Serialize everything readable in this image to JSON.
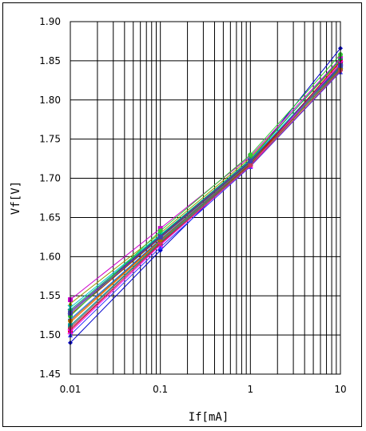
{
  "chart_data": {
    "type": "line",
    "title": "",
    "xlabel": "If[mA]",
    "ylabel": "Vf[V]",
    "x_scale": "log",
    "xlim": [
      0.01,
      10
    ],
    "ylim": [
      1.45,
      1.9
    ],
    "x_ticks": [
      {
        "value": 0.01,
        "label": "0.01"
      },
      {
        "value": 0.1,
        "label": "0.1"
      },
      {
        "value": 1,
        "label": "1"
      },
      {
        "value": 10,
        "label": "10"
      }
    ],
    "y_ticks": [
      {
        "value": 1.45,
        "label": "1.45"
      },
      {
        "value": 1.5,
        "label": "1.50"
      },
      {
        "value": 1.55,
        "label": "1.55"
      },
      {
        "value": 1.6,
        "label": "1.60"
      },
      {
        "value": 1.65,
        "label": "1.65"
      },
      {
        "value": 1.7,
        "label": "1.70"
      },
      {
        "value": 1.75,
        "label": "1.75"
      },
      {
        "value": 1.8,
        "label": "1.80"
      },
      {
        "value": 1.85,
        "label": "1.85"
      },
      {
        "value": 1.9,
        "label": "1.90"
      }
    ],
    "grid": true,
    "legend": "none",
    "x": [
      0.01,
      0.1,
      1,
      10
    ],
    "series": [
      {
        "color": "#0000cc",
        "marker": "diamond",
        "values": [
          1.49,
          1.608,
          1.722,
          1.866
        ]
      },
      {
        "color": "#cc00cc",
        "marker": "square",
        "values": [
          1.545,
          1.636,
          1.728,
          1.853
        ]
      },
      {
        "color": "#999900",
        "marker": "triangle",
        "values": [
          1.54,
          1.63,
          1.726,
          1.85
        ]
      },
      {
        "color": "#00cccc",
        "marker": "x",
        "values": [
          1.535,
          1.628,
          1.723,
          1.846
        ]
      },
      {
        "color": "#660099",
        "marker": "star",
        "values": [
          1.53,
          1.626,
          1.722,
          1.843
        ]
      },
      {
        "color": "#993300",
        "marker": "circle",
        "values": [
          1.526,
          1.624,
          1.721,
          1.841
        ]
      },
      {
        "color": "#33cc33",
        "marker": "circle",
        "values": [
          1.524,
          1.633,
          1.73,
          1.858
        ]
      },
      {
        "color": "#0066ff",
        "marker": "plus",
        "values": [
          1.52,
          1.622,
          1.72,
          1.838
        ]
      },
      {
        "color": "#ff6600",
        "marker": "triangle",
        "values": [
          1.516,
          1.62,
          1.718,
          1.845
        ]
      },
      {
        "color": "#009999",
        "marker": "square",
        "values": [
          1.512,
          1.619,
          1.719,
          1.842
        ]
      },
      {
        "color": "#cc0000",
        "marker": "square",
        "values": [
          1.506,
          1.617,
          1.718,
          1.849
        ]
      },
      {
        "color": "#666666",
        "marker": "diamond",
        "values": [
          1.51,
          1.618,
          1.717,
          1.84
        ]
      },
      {
        "color": "#3333ff",
        "marker": "triangle",
        "values": [
          1.5,
          1.612,
          1.715,
          1.836
        ]
      },
      {
        "color": "#ff00ff",
        "marker": "x",
        "values": [
          1.504,
          1.615,
          1.716,
          1.847
        ]
      },
      {
        "color": "#00aa66",
        "marker": "plus",
        "values": [
          1.532,
          1.627,
          1.724,
          1.852
        ]
      },
      {
        "color": "#aa6600",
        "marker": "circle",
        "values": [
          1.518,
          1.621,
          1.719,
          1.839
        ]
      },
      {
        "color": "#4444aa",
        "marker": "square",
        "values": [
          1.528,
          1.625,
          1.722,
          1.844
        ]
      },
      {
        "color": "#cc3366",
        "marker": "diamond",
        "values": [
          1.508,
          1.616,
          1.716,
          1.837
        ]
      }
    ]
  }
}
